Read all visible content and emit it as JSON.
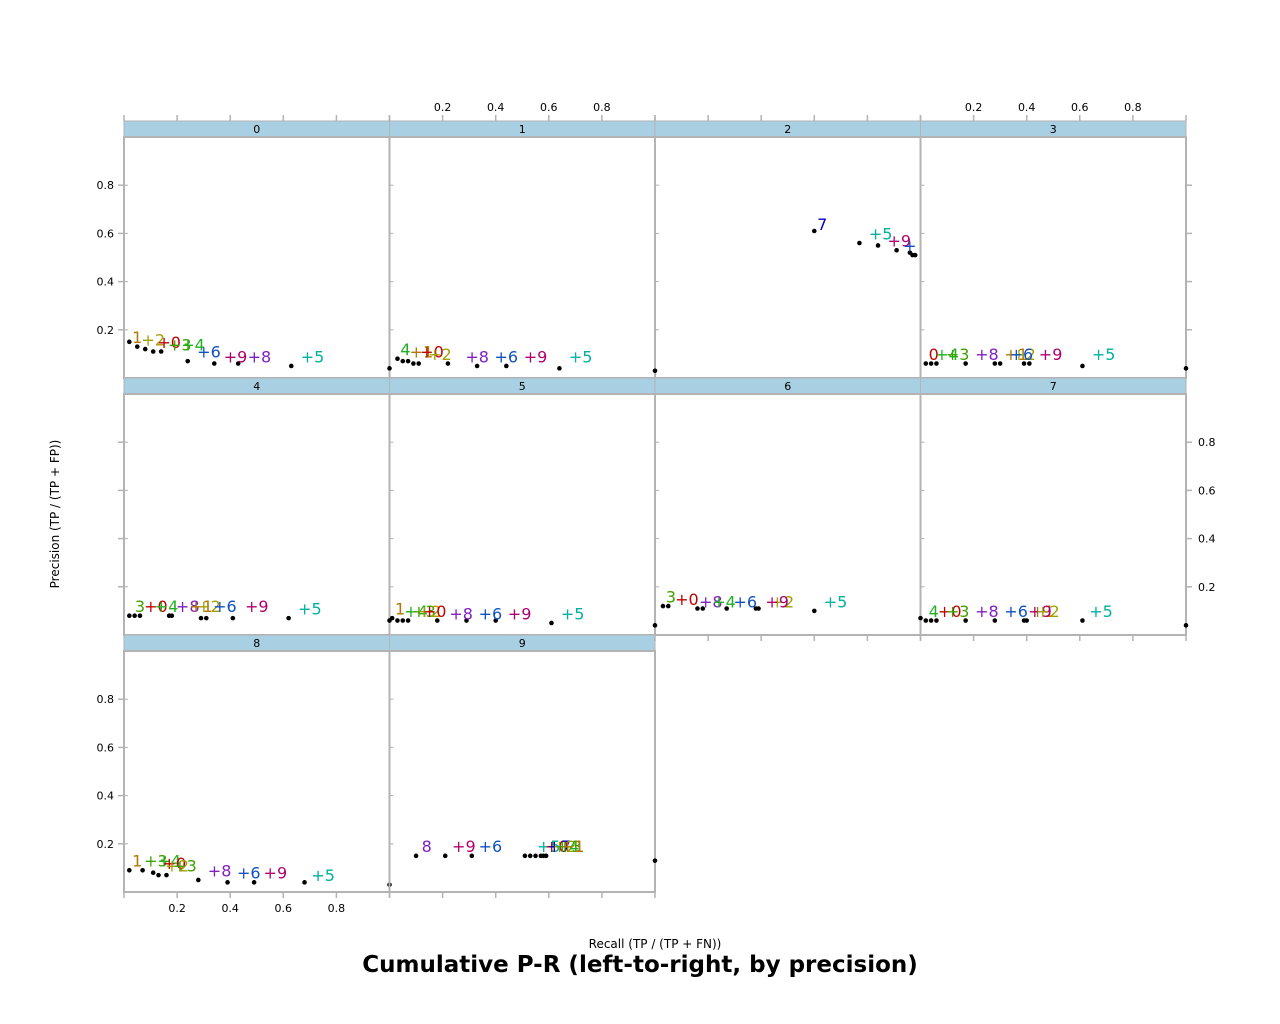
{
  "chart_data": {
    "type": "scatter",
    "title": "Cumulative P-R (left-to-right, by precision)",
    "xlabel": "Recall (TP / (TP + FN))",
    "ylabel": "Precision (TP / (TP + FP))",
    "xlim": [
      0,
      1
    ],
    "ylim": [
      0,
      1
    ],
    "xticks": [
      "0.2",
      "0.4",
      "0.6",
      "0.8"
    ],
    "yticks": [
      "0.2",
      "0.4",
      "0.6",
      "0.8"
    ],
    "label_colors": {
      "0": "#c00000",
      "1": "#b07800",
      "2": "#a0a000",
      "3": "#40a000",
      "4": "#20b020",
      "5": "#00b0a0",
      "6": "#1050c0",
      "7": "#0000c0",
      "8": "#8020c0",
      "9": "#b00070"
    },
    "panels": [
      {
        "panel": "0",
        "points": [
          [
            0.02,
            0.15
          ],
          [
            0.05,
            0.13
          ],
          [
            0.08,
            0.12
          ],
          [
            0.11,
            0.11
          ],
          [
            0.14,
            0.11
          ],
          [
            0.24,
            0.07
          ],
          [
            0.34,
            0.06
          ],
          [
            0.43,
            0.06
          ],
          [
            0.63,
            0.05
          ]
        ],
        "labels": [
          {
            "text": "1",
            "color": "1",
            "x": 0.05,
            "y": 0.17
          },
          {
            "text": "+2",
            "color": "2",
            "x": 0.11,
            "y": 0.16
          },
          {
            "text": "+0",
            "color": "0",
            "x": 0.17,
            "y": 0.15
          },
          {
            "text": "+3",
            "color": "3",
            "x": 0.21,
            "y": 0.14
          },
          {
            "text": "+4",
            "color": "4",
            "x": 0.26,
            "y": 0.14
          },
          {
            "text": "+6",
            "color": "6",
            "x": 0.32,
            "y": 0.11
          },
          {
            "text": "+9",
            "color": "9",
            "x": 0.42,
            "y": 0.09
          },
          {
            "text": "+8",
            "color": "8",
            "x": 0.51,
            "y": 0.09
          },
          {
            "text": "+5",
            "color": "5",
            "x": 0.71,
            "y": 0.09
          }
        ]
      },
      {
        "panel": "1",
        "points": [
          [
            0.0,
            0.04
          ],
          [
            0.03,
            0.08
          ],
          [
            0.05,
            0.07
          ],
          [
            0.07,
            0.07
          ],
          [
            0.09,
            0.06
          ],
          [
            0.11,
            0.06
          ],
          [
            0.22,
            0.06
          ],
          [
            0.33,
            0.05
          ],
          [
            0.44,
            0.05
          ],
          [
            0.64,
            0.04
          ]
        ],
        "labels": [
          {
            "text": "4",
            "color": "4",
            "x": 0.06,
            "y": 0.12
          },
          {
            "text": "+1",
            "color": "1",
            "x": 0.12,
            "y": 0.11
          },
          {
            "text": "+0",
            "color": "0",
            "x": 0.16,
            "y": 0.11
          },
          {
            "text": "+2",
            "color": "2",
            "x": 0.19,
            "y": 0.1
          },
          {
            "text": "+8",
            "color": "8",
            "x": 0.33,
            "y": 0.09
          },
          {
            "text": "+6",
            "color": "6",
            "x": 0.44,
            "y": 0.09
          },
          {
            "text": "+9",
            "color": "9",
            "x": 0.55,
            "y": 0.09
          },
          {
            "text": "+5",
            "color": "5",
            "x": 0.72,
            "y": 0.09
          }
        ]
      },
      {
        "panel": "2",
        "points": [
          [
            0.0,
            0.03
          ],
          [
            0.6,
            0.61
          ],
          [
            0.77,
            0.56
          ],
          [
            0.84,
            0.55
          ],
          [
            0.91,
            0.53
          ],
          [
            0.96,
            0.52
          ],
          [
            0.97,
            0.51
          ],
          [
            0.98,
            0.51
          ]
        ],
        "labels": [
          {
            "text": "7",
            "color": "7",
            "x": 0.63,
            "y": 0.64
          },
          {
            "text": "+5",
            "color": "5",
            "x": 0.85,
            "y": 0.6
          },
          {
            "text": "+9",
            "color": "9",
            "x": 0.92,
            "y": 0.57
          },
          {
            "text": "+",
            "color": "6",
            "x": 0.96,
            "y": 0.55
          }
        ]
      },
      {
        "panel": "3",
        "points": [
          [
            0.02,
            0.06
          ],
          [
            0.04,
            0.06
          ],
          [
            0.06,
            0.06
          ],
          [
            0.17,
            0.06
          ],
          [
            0.28,
            0.06
          ],
          [
            0.3,
            0.06
          ],
          [
            0.39,
            0.06
          ],
          [
            0.41,
            0.06
          ],
          [
            0.61,
            0.05
          ],
          [
            1.0,
            0.04
          ]
        ],
        "labels": [
          {
            "text": "0",
            "color": "0",
            "x": 0.05,
            "y": 0.1
          },
          {
            "text": "+4",
            "color": "4",
            "x": 0.1,
            "y": 0.1
          },
          {
            "text": "+3",
            "color": "3",
            "x": 0.14,
            "y": 0.1
          },
          {
            "text": "+8",
            "color": "8",
            "x": 0.25,
            "y": 0.1
          },
          {
            "text": "+1",
            "color": "1",
            "x": 0.36,
            "y": 0.1
          },
          {
            "text": "+2",
            "color": "2",
            "x": 0.39,
            "y": 0.1
          },
          {
            "text": "+6",
            "color": "6",
            "x": 0.38,
            "y": 0.1
          },
          {
            "text": "+9",
            "color": "9",
            "x": 0.49,
            "y": 0.1
          },
          {
            "text": "+5",
            "color": "5",
            "x": 0.69,
            "y": 0.1
          }
        ]
      },
      {
        "panel": "4",
        "points": [
          [
            0.02,
            0.08
          ],
          [
            0.04,
            0.08
          ],
          [
            0.06,
            0.08
          ],
          [
            0.17,
            0.08
          ],
          [
            0.18,
            0.08
          ],
          [
            0.29,
            0.07
          ],
          [
            0.31,
            0.07
          ],
          [
            0.41,
            0.07
          ],
          [
            0.62,
            0.07
          ]
        ],
        "labels": [
          {
            "text": "3",
            "color": "3",
            "x": 0.06,
            "y": 0.12
          },
          {
            "text": "+0",
            "color": "0",
            "x": 0.12,
            "y": 0.12
          },
          {
            "text": "+4",
            "color": "4",
            "x": 0.16,
            "y": 0.12
          },
          {
            "text": "+8",
            "color": "8",
            "x": 0.24,
            "y": 0.12
          },
          {
            "text": "+1",
            "color": "1",
            "x": 0.29,
            "y": 0.12
          },
          {
            "text": "+2",
            "color": "2",
            "x": 0.32,
            "y": 0.12
          },
          {
            "text": "+6",
            "color": "6",
            "x": 0.38,
            "y": 0.12
          },
          {
            "text": "+9",
            "color": "9",
            "x": 0.5,
            "y": 0.12
          },
          {
            "text": "+5",
            "color": "5",
            "x": 0.7,
            "y": 0.11
          }
        ]
      },
      {
        "panel": "5",
        "points": [
          [
            0.0,
            0.06
          ],
          [
            0.01,
            0.07
          ],
          [
            0.03,
            0.06
          ],
          [
            0.05,
            0.06
          ],
          [
            0.07,
            0.06
          ],
          [
            0.18,
            0.06
          ],
          [
            0.29,
            0.06
          ],
          [
            0.4,
            0.06
          ],
          [
            0.61,
            0.05
          ]
        ],
        "labels": [
          {
            "text": "1",
            "color": "1",
            "x": 0.04,
            "y": 0.11
          },
          {
            "text": "+4",
            "color": "4",
            "x": 0.1,
            "y": 0.1
          },
          {
            "text": "+3",
            "color": "3",
            "x": 0.13,
            "y": 0.1
          },
          {
            "text": "+2",
            "color": "2",
            "x": 0.15,
            "y": 0.1
          },
          {
            "text": "+0",
            "color": "0",
            "x": 0.17,
            "y": 0.1
          },
          {
            "text": "+8",
            "color": "8",
            "x": 0.27,
            "y": 0.09
          },
          {
            "text": "+6",
            "color": "6",
            "x": 0.38,
            "y": 0.09
          },
          {
            "text": "+9",
            "color": "9",
            "x": 0.49,
            "y": 0.09
          },
          {
            "text": "+5",
            "color": "5",
            "x": 0.69,
            "y": 0.09
          }
        ]
      },
      {
        "panel": "6",
        "points": [
          [
            0.0,
            0.04
          ],
          [
            0.03,
            0.12
          ],
          [
            0.05,
            0.12
          ],
          [
            0.16,
            0.11
          ],
          [
            0.18,
            0.11
          ],
          [
            0.27,
            0.11
          ],
          [
            0.38,
            0.11
          ],
          [
            0.39,
            0.11
          ],
          [
            0.6,
            0.1
          ]
        ],
        "labels": [
          {
            "text": "3",
            "color": "3",
            "x": 0.06,
            "y": 0.16
          },
          {
            "text": "+0",
            "color": "0",
            "x": 0.12,
            "y": 0.15
          },
          {
            "text": "+8",
            "color": "8",
            "x": 0.21,
            "y": 0.14
          },
          {
            "text": "+4",
            "color": "4",
            "x": 0.26,
            "y": 0.14
          },
          {
            "text": "+6",
            "color": "6",
            "x": 0.34,
            "y": 0.14
          },
          {
            "text": "+2",
            "color": "2",
            "x": 0.48,
            "y": 0.14
          },
          {
            "text": "+9",
            "color": "9",
            "x": 0.46,
            "y": 0.14
          },
          {
            "text": "+5",
            "color": "5",
            "x": 0.68,
            "y": 0.14
          }
        ]
      },
      {
        "panel": "7",
        "points": [
          [
            0.0,
            0.07
          ],
          [
            0.02,
            0.06
          ],
          [
            0.04,
            0.06
          ],
          [
            0.06,
            0.06
          ],
          [
            0.17,
            0.06
          ],
          [
            0.28,
            0.06
          ],
          [
            0.39,
            0.06
          ],
          [
            0.4,
            0.06
          ],
          [
            0.61,
            0.06
          ],
          [
            1.0,
            0.04
          ]
        ],
        "labels": [
          {
            "text": "4",
            "color": "4",
            "x": 0.05,
            "y": 0.1
          },
          {
            "text": "+0",
            "color": "0",
            "x": 0.11,
            "y": 0.1
          },
          {
            "text": "+3",
            "color": "3",
            "x": 0.14,
            "y": 0.1
          },
          {
            "text": "+8",
            "color": "8",
            "x": 0.25,
            "y": 0.1
          },
          {
            "text": "+6",
            "color": "6",
            "x": 0.36,
            "y": 0.1
          },
          {
            "text": "+1",
            "color": "1",
            "x": 0.46,
            "y": 0.1
          },
          {
            "text": "+9",
            "color": "9",
            "x": 0.45,
            "y": 0.1
          },
          {
            "text": "+2",
            "color": "2",
            "x": 0.48,
            "y": 0.1
          },
          {
            "text": "+5",
            "color": "5",
            "x": 0.68,
            "y": 0.1
          }
        ]
      },
      {
        "panel": "8",
        "points": [
          [
            0.02,
            0.09
          ],
          [
            0.07,
            0.09
          ],
          [
            0.11,
            0.08
          ],
          [
            0.13,
            0.07
          ],
          [
            0.16,
            0.07
          ],
          [
            0.28,
            0.05
          ],
          [
            0.39,
            0.04
          ],
          [
            0.49,
            0.04
          ],
          [
            0.68,
            0.04
          ],
          [
            1.0,
            0.03
          ]
        ],
        "labels": [
          {
            "text": "1",
            "color": "1",
            "x": 0.05,
            "y": 0.13
          },
          {
            "text": "+3",
            "color": "3",
            "x": 0.12,
            "y": 0.13
          },
          {
            "text": "+4",
            "color": "4",
            "x": 0.17,
            "y": 0.13
          },
          {
            "text": "+0",
            "color": "0",
            "x": 0.19,
            "y": 0.12
          },
          {
            "text": "+2",
            "color": "2",
            "x": 0.2,
            "y": 0.11
          },
          {
            "text": "+3",
            "color": "3",
            "x": 0.23,
            "y": 0.11
          },
          {
            "text": "+8",
            "color": "8",
            "x": 0.36,
            "y": 0.09
          },
          {
            "text": "+6",
            "color": "6",
            "x": 0.47,
            "y": 0.08
          },
          {
            "text": "+9",
            "color": "9",
            "x": 0.57,
            "y": 0.08
          },
          {
            "text": "+5",
            "color": "5",
            "x": 0.75,
            "y": 0.07
          }
        ]
      },
      {
        "panel": "9",
        "points": [
          [
            0.1,
            0.15
          ],
          [
            0.21,
            0.15
          ],
          [
            0.31,
            0.15
          ],
          [
            0.51,
            0.15
          ],
          [
            0.53,
            0.15
          ],
          [
            0.55,
            0.15
          ],
          [
            0.57,
            0.15
          ],
          [
            0.58,
            0.15
          ],
          [
            0.59,
            0.15
          ],
          [
            1.0,
            0.13
          ]
        ],
        "labels": [
          {
            "text": "8",
            "color": "8",
            "x": 0.14,
            "y": 0.19
          },
          {
            "text": "+9",
            "color": "9",
            "x": 0.28,
            "y": 0.19
          },
          {
            "text": "+6",
            "color": "6",
            "x": 0.38,
            "y": 0.19
          },
          {
            "text": "+5",
            "color": "5",
            "x": 0.6,
            "y": 0.19
          },
          {
            "text": "+0",
            "color": "0",
            "x": 0.63,
            "y": 0.19
          },
          {
            "text": "+7",
            "color": "7",
            "x": 0.64,
            "y": 0.19
          },
          {
            "text": "+2",
            "color": "2",
            "x": 0.66,
            "y": 0.19
          },
          {
            "text": "+4",
            "color": "4",
            "x": 0.67,
            "y": 0.19
          },
          {
            "text": "+3",
            "color": "3",
            "x": 0.68,
            "y": 0.19
          },
          {
            "text": "+1",
            "color": "1",
            "x": 0.69,
            "y": 0.19
          }
        ]
      }
    ]
  }
}
